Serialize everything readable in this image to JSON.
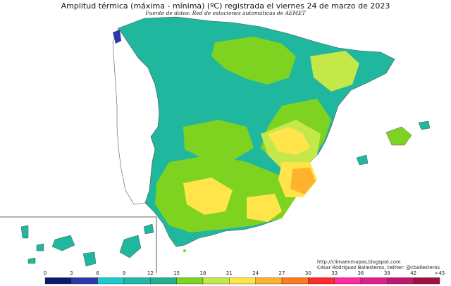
{
  "header": {
    "title": "Amplitud térmica (máxima - mínima) (ºC) registrada el viernes 24 de marzo de 2023",
    "source": "Fuente de datos: Red de estaciones automáticas de AEMET"
  },
  "credits": {
    "url": "http://climaenmapas.blogspot.com",
    "author": "César Rodríguez Ballesteros, twitter: @cballesteros"
  },
  "legend": {
    "ticks": [
      "0",
      "3",
      "6",
      "9",
      "12",
      "15",
      "18",
      "21",
      "24",
      "27",
      "30",
      "33",
      "36",
      "39",
      "42",
      ">45"
    ],
    "colors": [
      "#0a1a6e",
      "#2a3aa8",
      "#1ec9c9",
      "#20b8a6",
      "#23b090",
      "#7ed321",
      "#c4e84a",
      "#ffe54a",
      "#ffb22e",
      "#ff7a1e",
      "#ff2a2a",
      "#ff2aa0",
      "#e0208a",
      "#c01870",
      "#a01040"
    ]
  },
  "map_colors": {
    "sea": "#ffffff",
    "teal": "#1fb79e",
    "teal_light": "#2fc9a8",
    "green": "#7ed321",
    "lime": "#c4e84a",
    "yellow": "#ffe54a",
    "orange": "#ffb22e",
    "blue": "#2a3aa8",
    "border": "#333333"
  }
}
